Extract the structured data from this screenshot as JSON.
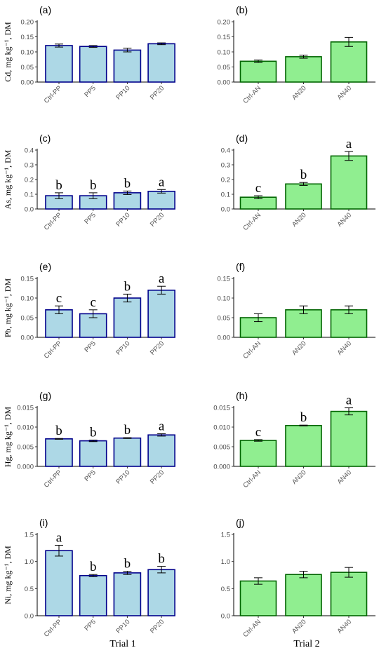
{
  "bar_colors": {
    "trial1_fill": "#add8e6",
    "trial1_stroke": "#00008b",
    "trial2_fill": "#90ee90",
    "trial2_stroke": "#006400"
  },
  "trial_labels": [
    "Trial 1",
    "Trial 2"
  ],
  "chart_data": [
    {
      "type": "bar",
      "panel": "(a)",
      "ylabel": "Cd, mg kg⁻¹, DM",
      "categories": [
        "Ctrl-PP",
        "PP5",
        "PP10",
        "PP20"
      ],
      "values": [
        0.121,
        0.118,
        0.106,
        0.127
      ],
      "errors": [
        0.005,
        0.003,
        0.006,
        0.003
      ],
      "letters": [],
      "ylim": [
        0,
        0.2
      ],
      "yticks": [
        "0.00",
        "0.05",
        "0.10",
        "0.15",
        "0.20"
      ]
    },
    {
      "type": "bar",
      "panel": "(b)",
      "ylabel": "",
      "categories": [
        "Ctrl-AN",
        "AN20",
        "AN40"
      ],
      "values": [
        0.069,
        0.084,
        0.133
      ],
      "errors": [
        0.004,
        0.005,
        0.015
      ],
      "letters": [],
      "ylim": [
        0,
        0.2
      ],
      "yticks": [
        "0.00",
        "0.05",
        "0.10",
        "0.15",
        "0.20"
      ]
    },
    {
      "type": "bar",
      "panel": "(c)",
      "ylabel": "As, mg kg⁻¹, DM",
      "categories": [
        "Ctrl-PP",
        "PP5",
        "PP10",
        "PP20"
      ],
      "values": [
        0.09,
        0.09,
        0.11,
        0.12
      ],
      "errors": [
        0.02,
        0.02,
        0.012,
        0.012
      ],
      "letters": [
        "b",
        "b",
        "b",
        "a"
      ],
      "ylim": [
        0,
        0.4
      ],
      "yticks": [
        "0.0",
        "0.1",
        "0.2",
        "0.3",
        "0.4"
      ]
    },
    {
      "type": "bar",
      "panel": "(d)",
      "ylabel": "",
      "categories": [
        "Ctrl-AN",
        "AN20",
        "AN40"
      ],
      "values": [
        0.08,
        0.17,
        0.36
      ],
      "errors": [
        0.01,
        0.01,
        0.03
      ],
      "letters": [
        "c",
        "b",
        "a"
      ],
      "ylim": [
        0,
        0.4
      ],
      "yticks": [
        "0.0",
        "0.1",
        "0.2",
        "0.3",
        "0.4"
      ]
    },
    {
      "type": "bar",
      "panel": "(e)",
      "ylabel": "Pb, mg kg⁻¹, DM",
      "categories": [
        "Ctrl-PP",
        "PP5",
        "PP10",
        "PP20"
      ],
      "values": [
        0.07,
        0.06,
        0.1,
        0.12
      ],
      "errors": [
        0.01,
        0.01,
        0.01,
        0.01
      ],
      "letters": [
        "c",
        "c",
        "b",
        "a"
      ],
      "ylim": [
        0,
        0.15
      ],
      "yticks": [
        "0.00",
        "0.05",
        "0.10",
        "0.15"
      ]
    },
    {
      "type": "bar",
      "panel": "(f)",
      "ylabel": "",
      "categories": [
        "Ctrl-AN",
        "AN20",
        "AN40"
      ],
      "values": [
        0.05,
        0.07,
        0.07
      ],
      "errors": [
        0.01,
        0.01,
        0.01
      ],
      "letters": [],
      "ylim": [
        0,
        0.15
      ],
      "yticks": [
        "0.00",
        "0.05",
        "0.10",
        "0.15"
      ]
    },
    {
      "type": "bar",
      "panel": "(g)",
      "ylabel": "Hg, mg kg⁻¹, DM",
      "categories": [
        "Ctrl-PP",
        "PP5",
        "PP10",
        "PP20"
      ],
      "values": [
        0.007,
        0.0065,
        0.0072,
        0.008
      ],
      "errors": [
        0.0001,
        0.0002,
        0.0001,
        0.0003
      ],
      "letters": [
        "b",
        "b",
        "b",
        "a"
      ],
      "ylim": [
        0,
        0.015
      ],
      "yticks": [
        "0.000",
        "0.005",
        "0.010",
        "0.015"
      ]
    },
    {
      "type": "bar",
      "panel": "(h)",
      "ylabel": "",
      "categories": [
        "Ctrl-AN",
        "AN20",
        "AN40"
      ],
      "values": [
        0.0066,
        0.0104,
        0.014
      ],
      "errors": [
        0.0002,
        0.0001,
        0.0009
      ],
      "letters": [
        "c",
        "b",
        "a"
      ],
      "ylim": [
        0,
        0.015
      ],
      "yticks": [
        "0.000",
        "0.005",
        "0.010",
        "0.015"
      ]
    },
    {
      "type": "bar",
      "panel": "(i)",
      "ylabel": "Ni, mg kg⁻¹, DM",
      "categories": [
        "Ctrl-PP",
        "PP5",
        "PP10",
        "PP20"
      ],
      "values": [
        1.2,
        0.74,
        0.79,
        0.85
      ],
      "errors": [
        0.1,
        0.02,
        0.03,
        0.06
      ],
      "letters": [
        "a",
        "b",
        "b",
        "b"
      ],
      "ylim": [
        0,
        1.5
      ],
      "yticks": [
        "0.0",
        "0.5",
        "1.0",
        "1.5"
      ]
    },
    {
      "type": "bar",
      "panel": "(j)",
      "ylabel": "",
      "categories": [
        "Ctrl-AN",
        "AN20",
        "AN40"
      ],
      "values": [
        0.64,
        0.76,
        0.8
      ],
      "errors": [
        0.06,
        0.06,
        0.09
      ],
      "letters": [],
      "ylim": [
        0,
        1.5
      ],
      "yticks": [
        "0.0",
        "0.5",
        "1.0",
        "1.5"
      ]
    }
  ]
}
